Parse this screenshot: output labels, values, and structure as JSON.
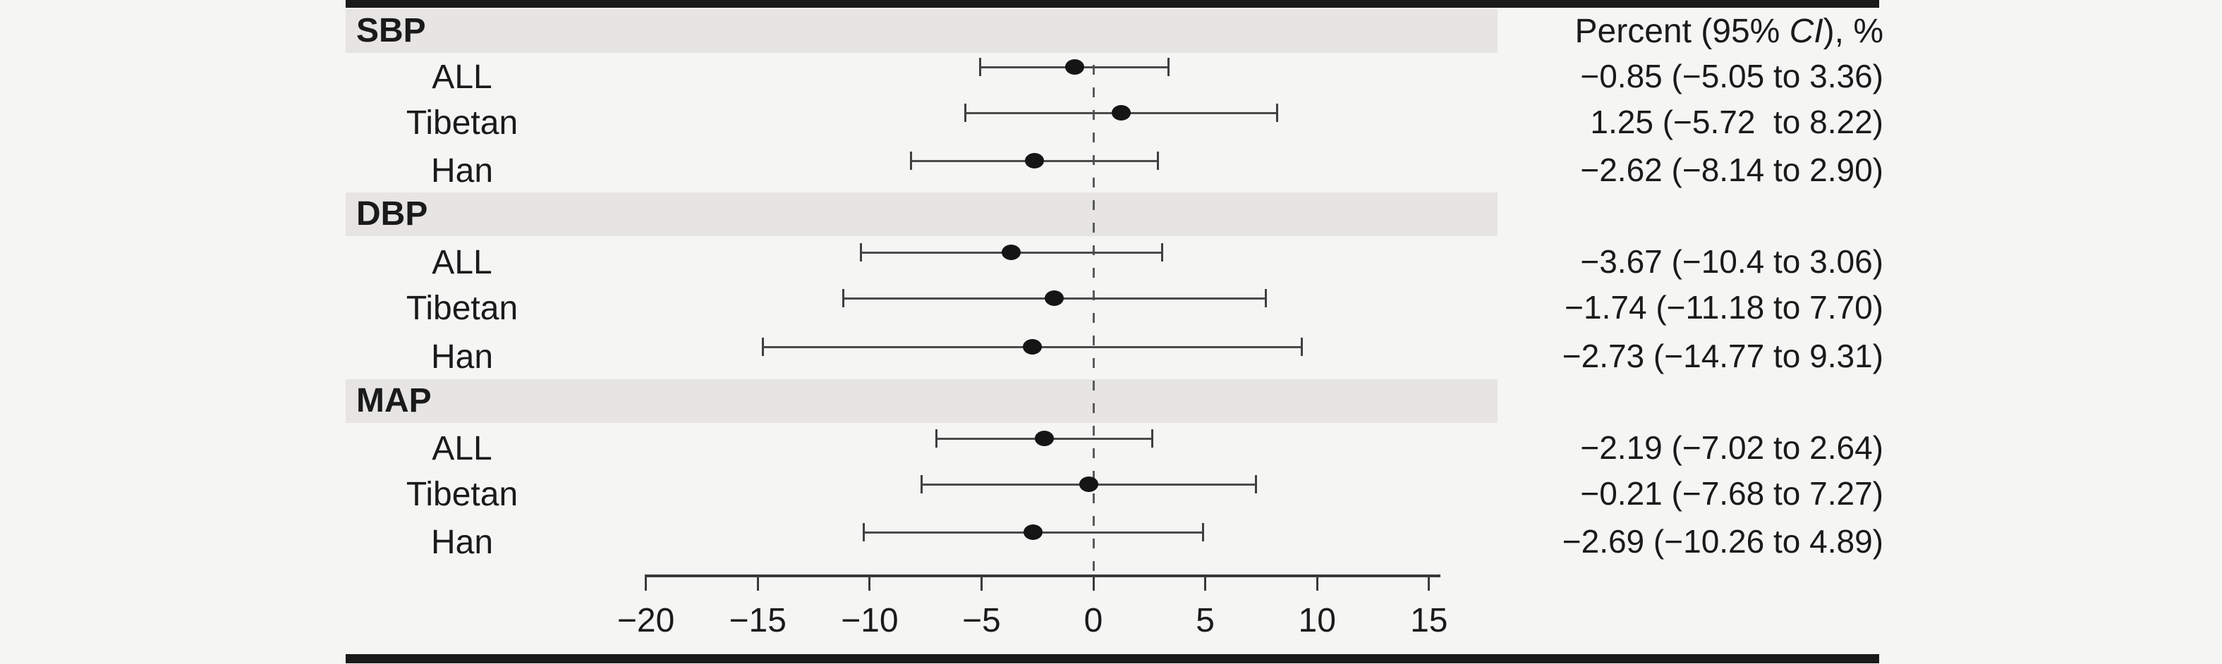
{
  "figure": {
    "value_column_header": {
      "prefix": "Percent (95% ",
      "italic": "CI",
      "suffix": "), %"
    }
  },
  "chart_data": {
    "type": "forest",
    "title": "",
    "value_column_header": "Percent (95% CI), %",
    "x_axis": {
      "range": [
        -20,
        15
      ],
      "ticks": [
        -20,
        -15,
        -10,
        -5,
        0,
        5,
        10,
        15
      ],
      "tick_labels": [
        "−20",
        "−15",
        "−10",
        "−5",
        "0",
        "5",
        "10",
        "15"
      ],
      "reference_line": 0
    },
    "groups": [
      {
        "label": "SBP",
        "rows": [
          {
            "label": "ALL",
            "estimate": -0.85,
            "ci_low": -5.05,
            "ci_high": 3.36,
            "display": "−0.85 (−5.05 to 3.36)"
          },
          {
            "label": "Tibetan",
            "estimate": 1.25,
            "ci_low": -5.72,
            "ci_high": 8.22,
            "display": "1.25 (−5.72  to 8.22)"
          },
          {
            "label": "Han",
            "estimate": -2.62,
            "ci_low": -8.14,
            "ci_high": 2.9,
            "display": "−2.62 (−8.14 to 2.90)"
          }
        ]
      },
      {
        "label": "DBP",
        "rows": [
          {
            "label": "ALL",
            "estimate": -3.67,
            "ci_low": -10.4,
            "ci_high": 3.06,
            "display": "−3.67 (−10.4 to 3.06)"
          },
          {
            "label": "Tibetan",
            "estimate": -1.74,
            "ci_low": -11.18,
            "ci_high": 7.7,
            "display": "−1.74 (−11.18 to 7.70)"
          },
          {
            "label": "Han",
            "estimate": -2.73,
            "ci_low": -14.77,
            "ci_high": 9.31,
            "display": "−2.73 (−14.77 to 9.31)"
          }
        ]
      },
      {
        "label": "MAP",
        "rows": [
          {
            "label": "ALL",
            "estimate": -2.19,
            "ci_low": -7.02,
            "ci_high": 2.64,
            "display": "−2.19 (−7.02 to 2.64)"
          },
          {
            "label": "Tibetan",
            "estimate": -0.21,
            "ci_low": -7.68,
            "ci_high": 7.27,
            "display": "−0.21 (−7.68 to 7.27)"
          },
          {
            "label": "Han",
            "estimate": -2.69,
            "ci_low": -10.26,
            "ci_high": 4.89,
            "display": "−2.69 (−10.26 to 4.89)"
          }
        ]
      }
    ],
    "colors": {
      "background": "#f5f5f4",
      "band": "#e6e5e3",
      "rule": "#1a1a1a",
      "whisker": "#4a4a4a",
      "marker": "#151515",
      "reference_dash": "#5a5a5a"
    },
    "layout_hints": {
      "grid": false,
      "legend": "none",
      "orientation": "horizontal-ci",
      "value_column_position": "right"
    }
  }
}
